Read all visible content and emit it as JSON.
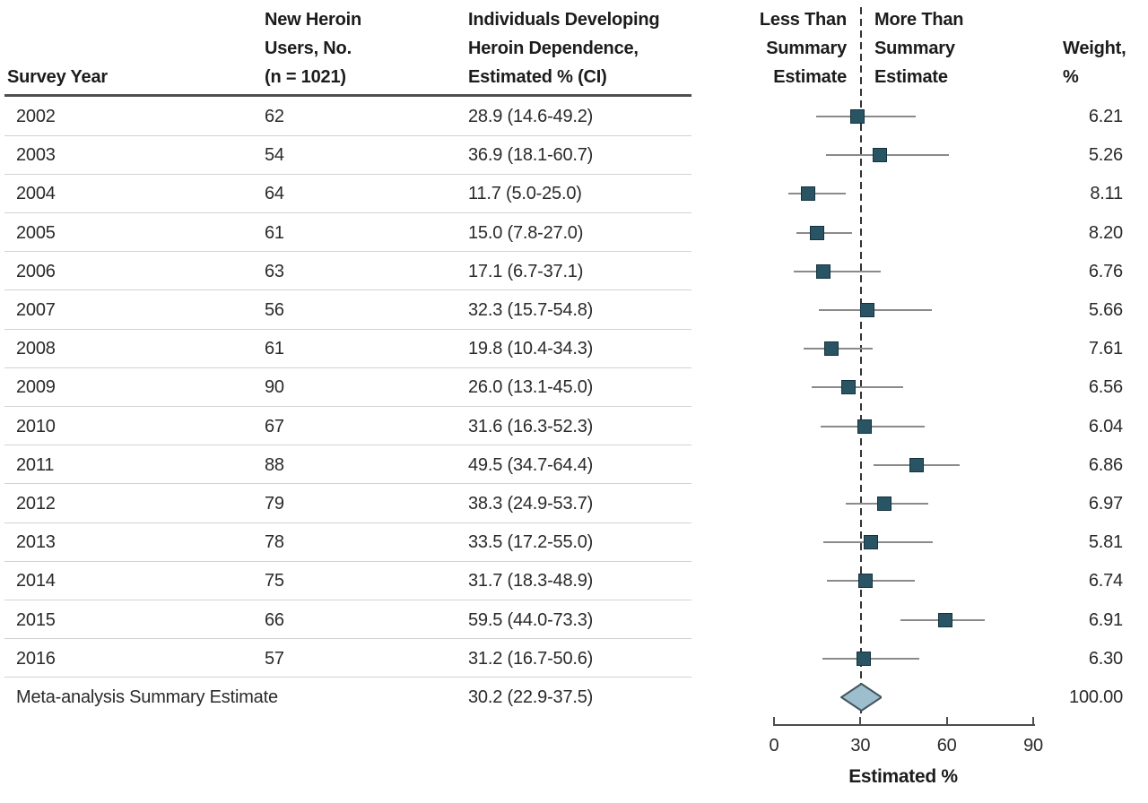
{
  "table": {
    "headers": {
      "col_year": "Survey Year",
      "col_users_lines": [
        "New Heroin",
        "Users, No.",
        "(n = 1021)"
      ],
      "col_estimate_lines": [
        "Individuals Developing",
        "Heroin Dependence,",
        "Estimated % (CI)"
      ],
      "col_less_lines": [
        "Less Than",
        "Summary",
        "Estimate"
      ],
      "col_more_lines": [
        "More Than",
        "Summary",
        "Estimate"
      ],
      "col_weight_lines": [
        "Weight,",
        "%"
      ]
    }
  },
  "chart_data": {
    "type": "forest",
    "xlabel": "Estimated %",
    "xlim": [
      0,
      90
    ],
    "xticks": [
      0,
      30,
      60,
      90
    ],
    "reference_line_at": 30.2,
    "studies": [
      {
        "year": "2002",
        "n": "62",
        "estimate": 28.9,
        "ci_low": 14.6,
        "ci_high": 49.2,
        "display": "28.9 (14.6-49.2)",
        "weight": "6.21"
      },
      {
        "year": "2003",
        "n": "54",
        "estimate": 36.9,
        "ci_low": 18.1,
        "ci_high": 60.7,
        "display": "36.9 (18.1-60.7)",
        "weight": "5.26"
      },
      {
        "year": "2004",
        "n": "64",
        "estimate": 11.7,
        "ci_low": 5.0,
        "ci_high": 25.0,
        "display": "11.7 (5.0-25.0)",
        "weight": "8.11"
      },
      {
        "year": "2005",
        "n": "61",
        "estimate": 15.0,
        "ci_low": 7.8,
        "ci_high": 27.0,
        "display": "15.0 (7.8-27.0)",
        "weight": "8.20"
      },
      {
        "year": "2006",
        "n": "63",
        "estimate": 17.1,
        "ci_low": 6.7,
        "ci_high": 37.1,
        "display": "17.1 (6.7-37.1)",
        "weight": "6.76"
      },
      {
        "year": "2007",
        "n": "56",
        "estimate": 32.3,
        "ci_low": 15.7,
        "ci_high": 54.8,
        "display": "32.3 (15.7-54.8)",
        "weight": "5.66"
      },
      {
        "year": "2008",
        "n": "61",
        "estimate": 19.8,
        "ci_low": 10.4,
        "ci_high": 34.3,
        "display": "19.8 (10.4-34.3)",
        "weight": "7.61"
      },
      {
        "year": "2009",
        "n": "90",
        "estimate": 26.0,
        "ci_low": 13.1,
        "ci_high": 45.0,
        "display": "26.0 (13.1-45.0)",
        "weight": "6.56"
      },
      {
        "year": "2010",
        "n": "67",
        "estimate": 31.6,
        "ci_low": 16.3,
        "ci_high": 52.3,
        "display": "31.6 (16.3-52.3)",
        "weight": "6.04"
      },
      {
        "year": "2011",
        "n": "88",
        "estimate": 49.5,
        "ci_low": 34.7,
        "ci_high": 64.4,
        "display": "49.5 (34.7-64.4)",
        "weight": "6.86"
      },
      {
        "year": "2012",
        "n": "79",
        "estimate": 38.3,
        "ci_low": 24.9,
        "ci_high": 53.7,
        "display": "38.3 (24.9-53.7)",
        "weight": "6.97"
      },
      {
        "year": "2013",
        "n": "78",
        "estimate": 33.5,
        "ci_low": 17.2,
        "ci_high": 55.0,
        "display": "33.5 (17.2-55.0)",
        "weight": "5.81"
      },
      {
        "year": "2014",
        "n": "75",
        "estimate": 31.7,
        "ci_low": 18.3,
        "ci_high": 48.9,
        "display": "31.7 (18.3-48.9)",
        "weight": "6.74"
      },
      {
        "year": "2015",
        "n": "66",
        "estimate": 59.5,
        "ci_low": 44.0,
        "ci_high": 73.3,
        "display": "59.5 (44.0-73.3)",
        "weight": "6.91"
      },
      {
        "year": "2016",
        "n": "57",
        "estimate": 31.2,
        "ci_low": 16.7,
        "ci_high": 50.6,
        "display": "31.2 (16.7-50.6)",
        "weight": "6.30"
      }
    ],
    "summary": {
      "label": "Meta-analysis Summary Estimate",
      "estimate": 30.2,
      "ci_low": 22.9,
      "ci_high": 37.5,
      "display": "30.2 (22.9-37.5)",
      "weight": "100.00"
    }
  },
  "colors": {
    "marker_fill": "#295463",
    "marker_border": "#15323d",
    "diamond_fill": "#9dbecd",
    "diamond_border": "#42545d",
    "ci_line": "#8a8a8a",
    "reference_dash": "#333333",
    "rule_heavy": "#4f4f4f",
    "rule_light": "#d2d2d2",
    "axis": "#4d4d4d"
  }
}
